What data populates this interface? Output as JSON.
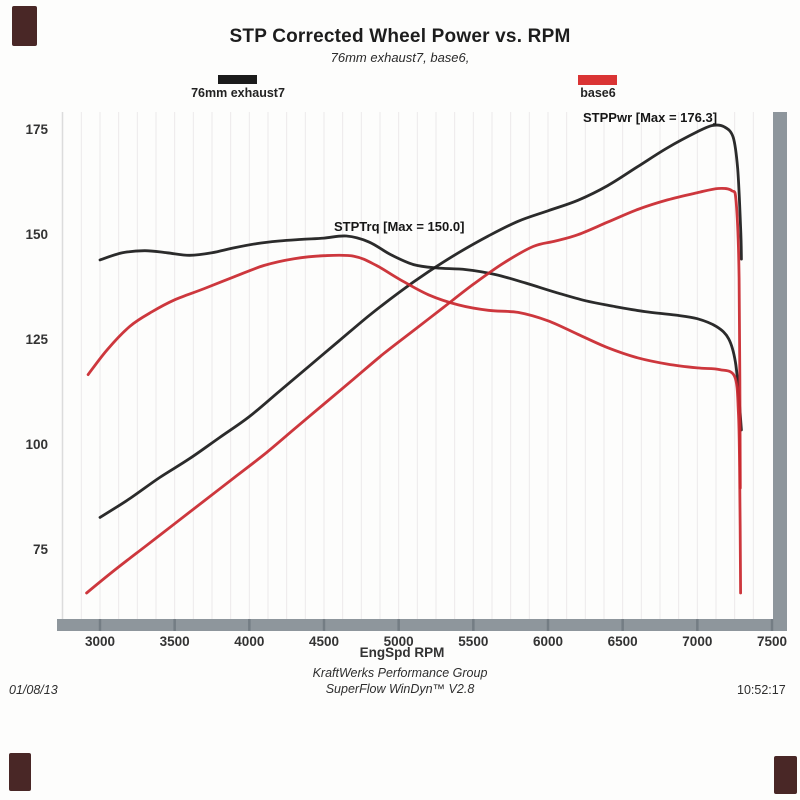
{
  "header": {
    "title": "STP Corrected Wheel Power vs. RPM",
    "subtitle": "76mm exhaust7, base6,"
  },
  "legend": {
    "items": [
      {
        "label": "76mm exhaust7",
        "color": "#1b1b1b"
      },
      {
        "label": "base6",
        "color": "#da3434"
      }
    ]
  },
  "annotations": {
    "power_max": "STPPwr [Max = 176.3]",
    "torque_max": "STPTrq [Max = 150.0]"
  },
  "axis": {
    "x_title": "EngSpd RPM",
    "x_ticks": [
      "3000",
      "3500",
      "4000",
      "4500",
      "5000",
      "5500",
      "6000",
      "6500",
      "7000",
      "7500"
    ],
    "y_ticks": [
      "175",
      "150",
      "125",
      "100",
      "75"
    ]
  },
  "footer": {
    "date": "01/08/13",
    "org": "KraftWerks Performance Group",
    "software": "SuperFlow WinDyn™ V2.8",
    "time": "10:52:17"
  },
  "colors": {
    "run1": "#1b1b1b",
    "run2": "#c9282e",
    "axis_bar": "#8e969c",
    "axis_bar_tick": "#747d84",
    "gridline": "#d8d3d6"
  },
  "chart_data": {
    "type": "line",
    "title": "STP Corrected Wheel Power vs. RPM",
    "subtitle": "76mm exhaust7, base6,",
    "xlabel": "EngSpd RPM",
    "ylabel": "",
    "xlim": [
      2800,
      7560
    ],
    "ylim": [
      62,
      181
    ],
    "x_ticks": [
      3000,
      3500,
      4000,
      4500,
      5000,
      5500,
      6000,
      6500,
      7000,
      7500
    ],
    "y_ticks": [
      175,
      150,
      125,
      100,
      75
    ],
    "grid": "faint vertical every 125 RPM",
    "legend_position": "top",
    "annotations": [
      {
        "text": "STPPwr [Max = 176.3]",
        "x": 6300,
        "y": 179
      },
      {
        "text": "STPTrq [Max = 150.0]",
        "x": 4600,
        "y": 153
      }
    ],
    "series": [
      {
        "name": "STPPwr 76mm exhaust7",
        "legend": "76mm exhaust7",
        "color": "#1b1b1b",
        "max": 176.3,
        "points": [
          [
            3000,
            83
          ],
          [
            3200,
            87.5
          ],
          [
            3400,
            92.5
          ],
          [
            3600,
            97
          ],
          [
            3800,
            102
          ],
          [
            4000,
            107
          ],
          [
            4200,
            113
          ],
          [
            4400,
            119
          ],
          [
            4600,
            125
          ],
          [
            4800,
            131
          ],
          [
            5000,
            136.5
          ],
          [
            5200,
            141.5
          ],
          [
            5400,
            146
          ],
          [
            5600,
            150
          ],
          [
            5800,
            153.5
          ],
          [
            6000,
            156
          ],
          [
            6200,
            158.5
          ],
          [
            6400,
            162
          ],
          [
            6600,
            166.5
          ],
          [
            6800,
            171
          ],
          [
            7000,
            174.8
          ],
          [
            7100,
            176.3
          ],
          [
            7180,
            176
          ],
          [
            7240,
            173.5
          ],
          [
            7270,
            166
          ],
          [
            7290,
            152
          ],
          [
            7295,
            144.5
          ]
        ]
      },
      {
        "name": "STPTrq 76mm exhaust7",
        "legend": "76mm exhaust7",
        "color": "#1b1b1b",
        "max": 150.0,
        "points": [
          [
            3000,
            144.3
          ],
          [
            3150,
            146
          ],
          [
            3300,
            146.5
          ],
          [
            3450,
            146
          ],
          [
            3600,
            145.4
          ],
          [
            3750,
            146
          ],
          [
            3900,
            147.2
          ],
          [
            4050,
            148.2
          ],
          [
            4200,
            148.8
          ],
          [
            4350,
            149.2
          ],
          [
            4500,
            149.5
          ],
          [
            4650,
            150
          ],
          [
            4800,
            148.6
          ],
          [
            4950,
            145.5
          ],
          [
            5100,
            143.2
          ],
          [
            5250,
            142.4
          ],
          [
            5450,
            142
          ],
          [
            5650,
            140.8
          ],
          [
            5850,
            138.8
          ],
          [
            6050,
            136.6
          ],
          [
            6250,
            134.6
          ],
          [
            6450,
            133.2
          ],
          [
            6650,
            132
          ],
          [
            6850,
            131.2
          ],
          [
            7000,
            130.3
          ],
          [
            7130,
            128.4
          ],
          [
            7210,
            125.5
          ],
          [
            7255,
            120
          ],
          [
            7280,
            111
          ],
          [
            7295,
            103.8
          ]
        ]
      },
      {
        "name": "STPPwr base6",
        "legend": "base6",
        "color": "#c9282e",
        "max": 161.3,
        "points": [
          [
            2910,
            65
          ],
          [
            3100,
            70.5
          ],
          [
            3300,
            76
          ],
          [
            3500,
            81.5
          ],
          [
            3700,
            87
          ],
          [
            3900,
            92.5
          ],
          [
            4100,
            98
          ],
          [
            4300,
            104
          ],
          [
            4500,
            110
          ],
          [
            4700,
            116
          ],
          [
            4900,
            122
          ],
          [
            5100,
            127.5
          ],
          [
            5300,
            133
          ],
          [
            5500,
            138.5
          ],
          [
            5700,
            143.5
          ],
          [
            5900,
            147.5
          ],
          [
            6050,
            148.8
          ],
          [
            6200,
            150.3
          ],
          [
            6400,
            153.3
          ],
          [
            6600,
            156.3
          ],
          [
            6800,
            158.6
          ],
          [
            7000,
            160.3
          ],
          [
            7140,
            161.3
          ],
          [
            7230,
            160.8
          ],
          [
            7260,
            158
          ],
          [
            7280,
            140
          ],
          [
            7288,
            90
          ]
        ]
      },
      {
        "name": "STPTrq base6",
        "legend": "base6",
        "color": "#c9282e",
        "max": 145.3,
        "points": [
          [
            2920,
            117
          ],
          [
            3050,
            123
          ],
          [
            3200,
            128.5
          ],
          [
            3350,
            132
          ],
          [
            3500,
            134.8
          ],
          [
            3700,
            137.5
          ],
          [
            3900,
            140.3
          ],
          [
            4100,
            143
          ],
          [
            4300,
            144.6
          ],
          [
            4500,
            145.3
          ],
          [
            4700,
            145.2
          ],
          [
            4850,
            143
          ],
          [
            5000,
            139.8
          ],
          [
            5200,
            136
          ],
          [
            5400,
            133.6
          ],
          [
            5600,
            132.3
          ],
          [
            5800,
            131.8
          ],
          [
            6000,
            129.8
          ],
          [
            6200,
            126.6
          ],
          [
            6400,
            123.4
          ],
          [
            6600,
            121
          ],
          [
            6800,
            119.5
          ],
          [
            7000,
            118.6
          ],
          [
            7150,
            118.2
          ],
          [
            7250,
            116.5
          ],
          [
            7275,
            108
          ],
          [
            7283,
            95
          ],
          [
            7290,
            65
          ]
        ]
      }
    ]
  }
}
